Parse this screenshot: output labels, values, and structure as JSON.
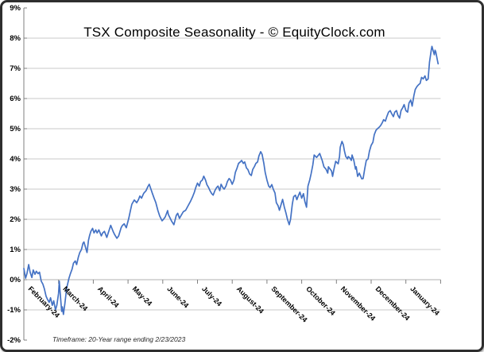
{
  "title": "TSX Composite Seasonality - © EquityClock.com",
  "footnote": "Timeframe: 20-Year range ending 2/23/2023",
  "colors": {
    "line": "#4472c4",
    "gridline": "#c9c9c9",
    "zero_axis": "#b0b0b0",
    "axis": "#7f7f7f",
    "tick": "#7f7f7f",
    "text": "#000000",
    "frame_border": "#2e2e2e",
    "background": "#ffffff"
  },
  "chart_data": {
    "type": "line",
    "title": "TSX Composite Seasonality - © EquityClock.com",
    "footnote": "Timeframe: 20-Year range ending 2/23/2023",
    "legend": "none",
    "grid": "horizontal",
    "x_axis": {
      "categories": [
        "February-24",
        "March-24",
        "April-24",
        "May-24",
        "June-24",
        "July-24",
        "August-24",
        "September-24",
        "October-24",
        "November-24",
        "December-24",
        "January-24"
      ],
      "label_rotation_deg": 45,
      "tick_positions_months": [
        0,
        1,
        2,
        3,
        4,
        5,
        6,
        7,
        8,
        9,
        10,
        11,
        12
      ]
    },
    "y_axis": {
      "unit": "%",
      "min": -2,
      "max": 9,
      "tick_values": [
        9,
        8,
        7,
        6,
        5,
        4,
        3,
        2,
        1,
        0,
        -1,
        -2
      ],
      "tick_labels": [
        "9%",
        "8%",
        "7%",
        "6%",
        "5%",
        "4%",
        "3%",
        "2%",
        "1%",
        "0%",
        "-1%",
        "-2%"
      ],
      "gridline_values": [
        8,
        7,
        6,
        5,
        4,
        3,
        2,
        1,
        -1
      ],
      "zero_axis_value": 0
    },
    "series": [
      {
        "name": "TSX Composite Seasonality",
        "color": "#4472c4",
        "x_unit": "months_from_february_start",
        "points": [
          [
            0,
            0.37
          ],
          [
            0.05,
            0.05
          ],
          [
            0.09,
            0.2
          ],
          [
            0.14,
            0.5
          ],
          [
            0.18,
            0.25
          ],
          [
            0.23,
            0.07
          ],
          [
            0.27,
            0.32
          ],
          [
            0.32,
            0.18
          ],
          [
            0.36,
            0.28
          ],
          [
            0.41,
            0.2
          ],
          [
            0.45,
            0.25
          ],
          [
            0.5,
            -0.05
          ],
          [
            0.55,
            -0.15
          ],
          [
            0.59,
            -0.3
          ],
          [
            0.64,
            -0.55
          ],
          [
            0.68,
            -0.65
          ],
          [
            0.73,
            -0.75
          ],
          [
            0.77,
            -0.6
          ],
          [
            0.82,
            -0.85
          ],
          [
            0.86,
            -0.7
          ],
          [
            0.91,
            -1.0
          ],
          [
            0.95,
            -0.85
          ],
          [
            1.0,
            -0.45
          ],
          [
            1.02,
            -0.05
          ],
          [
            1.05,
            -0.5
          ],
          [
            1.09,
            -1.05
          ],
          [
            1.11,
            -0.9
          ],
          [
            1.14,
            -1.15
          ],
          [
            1.18,
            -0.8
          ],
          [
            1.23,
            -0.3
          ],
          [
            1.25,
            -0.2
          ],
          [
            1.3,
            0.05
          ],
          [
            1.34,
            0.2
          ],
          [
            1.39,
            0.35
          ],
          [
            1.43,
            0.55
          ],
          [
            1.48,
            0.62
          ],
          [
            1.52,
            0.5
          ],
          [
            1.57,
            0.75
          ],
          [
            1.61,
            0.9
          ],
          [
            1.66,
            1.0
          ],
          [
            1.7,
            1.2
          ],
          [
            1.73,
            1.25
          ],
          [
            1.77,
            1.1
          ],
          [
            1.82,
            0.9
          ],
          [
            1.86,
            1.3
          ],
          [
            1.89,
            1.45
          ],
          [
            1.93,
            1.6
          ],
          [
            1.98,
            1.7
          ],
          [
            2.02,
            1.55
          ],
          [
            2.07,
            1.65
          ],
          [
            2.11,
            1.55
          ],
          [
            2.16,
            1.65
          ],
          [
            2.23,
            1.45
          ],
          [
            2.27,
            1.55
          ],
          [
            2.32,
            1.6
          ],
          [
            2.39,
            1.4
          ],
          [
            2.43,
            1.55
          ],
          [
            2.5,
            1.8
          ],
          [
            2.57,
            1.6
          ],
          [
            2.61,
            1.5
          ],
          [
            2.68,
            1.37
          ],
          [
            2.73,
            1.45
          ],
          [
            2.8,
            1.72
          ],
          [
            2.84,
            1.8
          ],
          [
            2.89,
            1.85
          ],
          [
            2.95,
            1.72
          ],
          [
            3.02,
            2.03
          ],
          [
            3.07,
            2.3
          ],
          [
            3.11,
            2.5
          ],
          [
            3.18,
            2.64
          ],
          [
            3.25,
            2.55
          ],
          [
            3.3,
            2.65
          ],
          [
            3.34,
            2.77
          ],
          [
            3.39,
            2.7
          ],
          [
            3.45,
            2.86
          ],
          [
            3.52,
            2.95
          ],
          [
            3.57,
            3.08
          ],
          [
            3.61,
            3.16
          ],
          [
            3.66,
            3.0
          ],
          [
            3.7,
            2.86
          ],
          [
            3.75,
            2.7
          ],
          [
            3.8,
            2.55
          ],
          [
            3.86,
            2.29
          ],
          [
            3.91,
            2.11
          ],
          [
            3.98,
            1.95
          ],
          [
            4.02,
            2.0
          ],
          [
            4.07,
            2.08
          ],
          [
            4.14,
            2.29
          ],
          [
            4.16,
            2.16
          ],
          [
            4.25,
            1.95
          ],
          [
            4.32,
            1.82
          ],
          [
            4.39,
            2.13
          ],
          [
            4.43,
            2.2
          ],
          [
            4.48,
            2.03
          ],
          [
            4.52,
            2.11
          ],
          [
            4.59,
            2.25
          ],
          [
            4.66,
            2.3
          ],
          [
            4.73,
            2.45
          ],
          [
            4.8,
            2.6
          ],
          [
            4.86,
            2.75
          ],
          [
            4.91,
            2.9
          ],
          [
            4.95,
            3.05
          ],
          [
            5.0,
            3.2
          ],
          [
            5.05,
            3.1
          ],
          [
            5.09,
            3.25
          ],
          [
            5.14,
            3.3
          ],
          [
            5.18,
            3.43
          ],
          [
            5.23,
            3.3
          ],
          [
            5.27,
            3.15
          ],
          [
            5.32,
            3.05
          ],
          [
            5.36,
            2.95
          ],
          [
            5.41,
            2.85
          ],
          [
            5.45,
            2.8
          ],
          [
            5.5,
            2.95
          ],
          [
            5.55,
            3.05
          ],
          [
            5.59,
            3.1
          ],
          [
            5.64,
            2.95
          ],
          [
            5.68,
            3.16
          ],
          [
            5.73,
            3.05
          ],
          [
            5.77,
            3.0
          ],
          [
            5.82,
            3.1
          ],
          [
            5.86,
            3.25
          ],
          [
            5.91,
            3.35
          ],
          [
            5.95,
            3.3
          ],
          [
            6.0,
            3.16
          ],
          [
            6.05,
            3.3
          ],
          [
            6.09,
            3.55
          ],
          [
            6.14,
            3.7
          ],
          [
            6.18,
            3.85
          ],
          [
            6.23,
            3.9
          ],
          [
            6.27,
            3.95
          ],
          [
            6.32,
            3.85
          ],
          [
            6.36,
            3.9
          ],
          [
            6.41,
            3.7
          ],
          [
            6.45,
            3.65
          ],
          [
            6.5,
            3.5
          ],
          [
            6.55,
            3.45
          ],
          [
            6.59,
            3.65
          ],
          [
            6.64,
            3.75
          ],
          [
            6.68,
            3.85
          ],
          [
            6.73,
            3.9
          ],
          [
            6.77,
            4.1
          ],
          [
            6.82,
            4.24
          ],
          [
            6.86,
            4.15
          ],
          [
            6.91,
            3.85
          ],
          [
            6.95,
            3.55
          ],
          [
            7.0,
            3.3
          ],
          [
            7.05,
            3.1
          ],
          [
            7.09,
            3.05
          ],
          [
            7.14,
            3.15
          ],
          [
            7.18,
            3.0
          ],
          [
            7.23,
            2.87
          ],
          [
            7.27,
            2.55
          ],
          [
            7.32,
            2.45
          ],
          [
            7.36,
            2.3
          ],
          [
            7.41,
            2.5
          ],
          [
            7.45,
            2.66
          ],
          [
            7.5,
            2.4
          ],
          [
            7.55,
            2.2
          ],
          [
            7.59,
            2.0
          ],
          [
            7.64,
            1.82
          ],
          [
            7.68,
            2.0
          ],
          [
            7.73,
            2.5
          ],
          [
            7.77,
            2.75
          ],
          [
            7.82,
            2.8
          ],
          [
            7.86,
            2.65
          ],
          [
            7.91,
            2.8
          ],
          [
            7.95,
            2.9
          ],
          [
            8.0,
            2.7
          ],
          [
            8.05,
            2.85
          ],
          [
            8.09,
            2.6
          ],
          [
            8.14,
            2.4
          ],
          [
            8.18,
            3.1
          ],
          [
            8.23,
            3.3
          ],
          [
            8.27,
            3.5
          ],
          [
            8.32,
            3.8
          ],
          [
            8.36,
            4.13
          ],
          [
            8.43,
            4.05
          ],
          [
            8.52,
            4.18
          ],
          [
            8.59,
            3.95
          ],
          [
            8.64,
            3.74
          ],
          [
            8.7,
            3.66
          ],
          [
            8.75,
            3.53
          ],
          [
            8.77,
            3.74
          ],
          [
            8.86,
            3.6
          ],
          [
            8.89,
            3.42
          ],
          [
            8.93,
            3.66
          ],
          [
            8.98,
            3.92
          ],
          [
            9.05,
            3.84
          ],
          [
            9.09,
            4.08
          ],
          [
            9.11,
            4.39
          ],
          [
            9.16,
            4.58
          ],
          [
            9.2,
            4.47
          ],
          [
            9.23,
            4.26
          ],
          [
            9.27,
            4.08
          ],
          [
            9.32,
            4.0
          ],
          [
            9.34,
            4.08
          ],
          [
            9.39,
            4.03
          ],
          [
            9.43,
            3.95
          ],
          [
            9.45,
            4.13
          ],
          [
            9.5,
            3.95
          ],
          [
            9.55,
            3.66
          ],
          [
            9.57,
            3.74
          ],
          [
            9.61,
            3.42
          ],
          [
            9.66,
            3.53
          ],
          [
            9.73,
            3.34
          ],
          [
            9.77,
            3.35
          ],
          [
            9.82,
            3.7
          ],
          [
            9.86,
            3.95
          ],
          [
            9.91,
            4.0
          ],
          [
            9.95,
            4.25
          ],
          [
            10.0,
            4.45
          ],
          [
            10.05,
            4.55
          ],
          [
            10.09,
            4.8
          ],
          [
            10.14,
            4.95
          ],
          [
            10.18,
            5.0
          ],
          [
            10.23,
            5.05
          ],
          [
            10.27,
            5.1
          ],
          [
            10.32,
            5.2
          ],
          [
            10.36,
            5.3
          ],
          [
            10.41,
            5.25
          ],
          [
            10.45,
            5.4
          ],
          [
            10.5,
            5.55
          ],
          [
            10.55,
            5.6
          ],
          [
            10.59,
            5.5
          ],
          [
            10.64,
            5.4
          ],
          [
            10.68,
            5.55
          ],
          [
            10.73,
            5.6
          ],
          [
            10.77,
            5.45
          ],
          [
            10.82,
            5.35
          ],
          [
            10.86,
            5.6
          ],
          [
            10.91,
            5.7
          ],
          [
            10.95,
            5.8
          ],
          [
            11.0,
            5.6
          ],
          [
            11.05,
            5.55
          ],
          [
            11.09,
            5.85
          ],
          [
            11.14,
            5.95
          ],
          [
            11.18,
            5.75
          ],
          [
            11.23,
            6.1
          ],
          [
            11.27,
            6.3
          ],
          [
            11.32,
            6.4
          ],
          [
            11.36,
            6.45
          ],
          [
            11.41,
            6.5
          ],
          [
            11.45,
            6.7
          ],
          [
            11.5,
            6.65
          ],
          [
            11.55,
            6.75
          ],
          [
            11.59,
            6.6
          ],
          [
            11.64,
            6.65
          ],
          [
            11.68,
            7.2
          ],
          [
            11.73,
            7.6
          ],
          [
            11.75,
            7.73
          ],
          [
            11.77,
            7.65
          ],
          [
            11.82,
            7.45
          ],
          [
            11.84,
            7.6
          ],
          [
            11.86,
            7.55
          ],
          [
            11.91,
            7.25
          ],
          [
            11.93,
            7.15
          ]
        ]
      }
    ]
  }
}
